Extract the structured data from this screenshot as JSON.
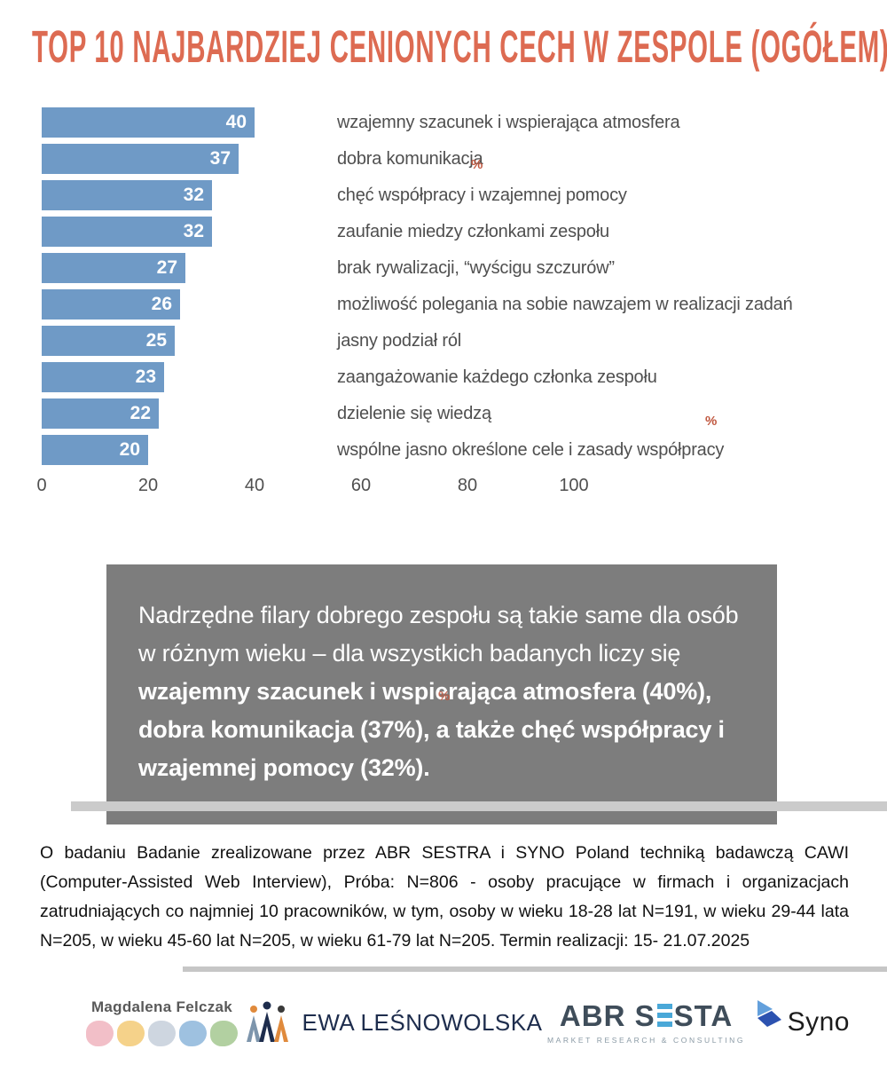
{
  "title": "TOP 10 NAJBARDZIEJ CENIONYCH CECH W ZESPOLE (OGÓŁEM)",
  "chart_data": {
    "type": "bar",
    "orientation": "horizontal",
    "unit": "%",
    "title": "TOP 10 NAJBARDZIEJ CENIONYCH CECH W ZESPOLE (OGÓŁEM)",
    "categories": [
      "wzajemny szacunek i wspierająca atmosfera",
      "dobra komunikacja",
      "chęć współpracy i wzajemnej pomocy",
      "zaufanie miedzy członkami zespołu",
      "brak rywalizacji, “wyścigu szczurów”",
      "możliwość polegania na sobie nawzajem w realizacji zadań",
      "jasny podział ról",
      "zaangażowanie każdego członka zespołu",
      "dzielenie się wiedzą",
      "wspólne jasno określone cele i zasady współpracy"
    ],
    "values": [
      40,
      37,
      32,
      32,
      27,
      26,
      25,
      23,
      22,
      20
    ],
    "xlim": [
      0,
      100
    ],
    "x_ticks": [
      0,
      20,
      40,
      60,
      80,
      100
    ],
    "bar_color": "#6f9ac6",
    "value_label_color": "#ffffff",
    "grid": false,
    "legend": false
  },
  "decorations": {
    "percent_symbol": "%",
    "accent_color": "#dd6b52",
    "percent_mark_color": "#c0573f"
  },
  "summary": {
    "bg_color": "#7d7d7d",
    "text_regular": "Nadrzędne filary dobrego zespołu są takie same dla osób w różnym wieku – dla wszystkich badanych liczy się ",
    "text_bold": "wzajemny szacunek i wspierająca atmosfera (40%), dobra komunikacja (37%), a także chęć współpracy i wzajemnej pomocy (32%)."
  },
  "about": {
    "text": "O badaniu Badanie zrealizowane przez ABR SESTRA i SYNO Poland techniką badawczą CAWI (Computer-Assisted Web Interview), Próba: N=806 - osoby pracujące w firmach i organizacjach zatrudniających co najmniej 10 pracowników, w tym, osoby w wieku 18-28 lat N=191, w wieku 29-44 lata N=205, w wieku 45-60 lat N=205, w wieku 61-79 lat N=205. Termin realizacji: 15- 21.07.2025"
  },
  "logos": {
    "magdalena": {
      "name": "Magdalena Felczak",
      "dot_colors": [
        "#f0b4be",
        "#f3ca76",
        "#c6cfda",
        "#8db6da",
        "#a5c890"
      ]
    },
    "ewa": {
      "name": "EWA LEŚNOWOLSKA"
    },
    "abr": {
      "name_prefix": "ABR S",
      "name_suffix": "STA",
      "tagline": "MARKET RESEARCH & CONSULTING",
      "ebar_color": "#4aa8d8"
    },
    "syno": {
      "name": "Syno"
    }
  }
}
